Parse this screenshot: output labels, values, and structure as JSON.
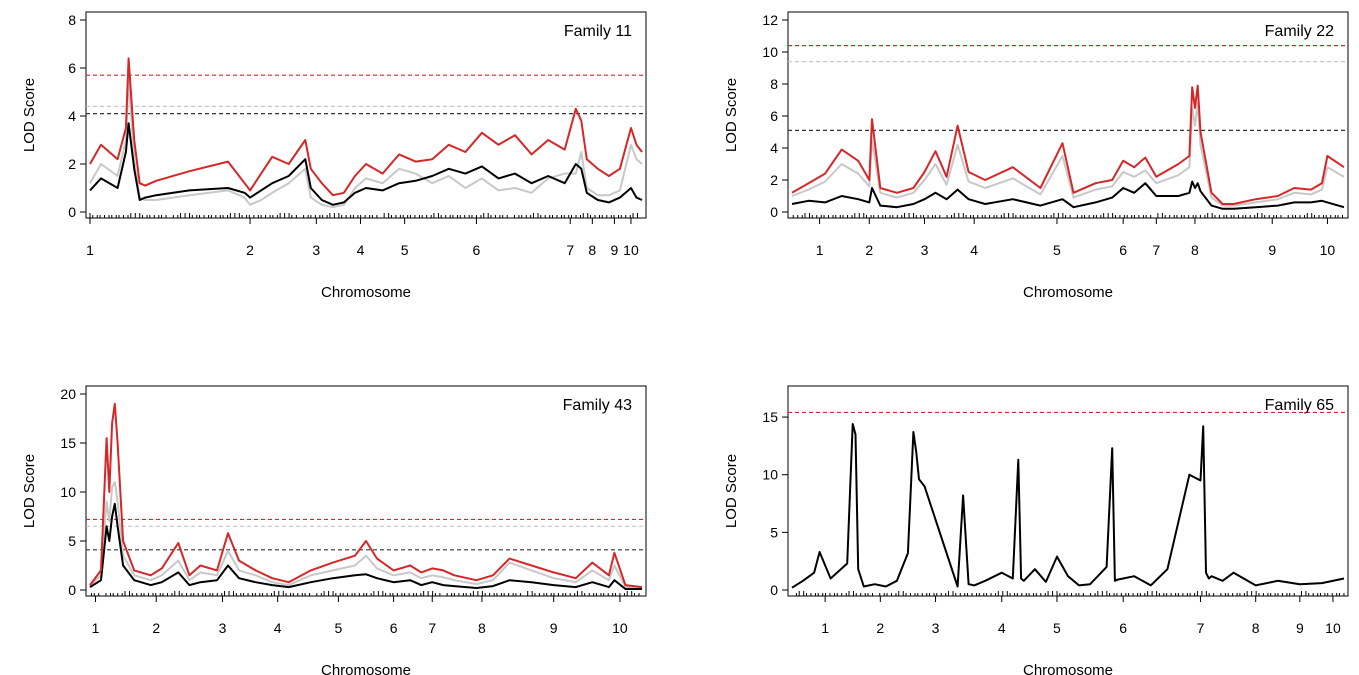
{
  "chart_data": [
    {
      "type": "line",
      "title": "Family 11",
      "xlabel": "Chromosome",
      "ylabel": "LOD Score",
      "ylim": [
        0,
        8
      ],
      "yticks": [
        0,
        2,
        4,
        6,
        8
      ],
      "chromosomes": [
        "1",
        "2",
        "3",
        "4",
        "5",
        "6",
        "7",
        "8",
        "9",
        "10"
      ],
      "chromosome_starts": [
        0.0,
        0.29,
        0.41,
        0.49,
        0.57,
        0.7,
        0.87,
        0.91,
        0.95,
        0.98
      ],
      "thresholds": [
        {
          "color": "#d62728",
          "value": 5.7
        },
        {
          "color": "#c8c8c8",
          "value": 4.4
        },
        {
          "color": "#333333",
          "value": 4.1
        }
      ],
      "series": [
        {
          "color": "#d62728",
          "x": [
            0,
            0.02,
            0.05,
            0.065,
            0.07,
            0.08,
            0.09,
            0.1,
            0.12,
            0.18,
            0.25,
            0.28,
            0.29,
            0.31,
            0.33,
            0.36,
            0.39,
            0.4,
            0.42,
            0.44,
            0.46,
            0.48,
            0.5,
            0.53,
            0.56,
            0.59,
            0.62,
            0.65,
            0.68,
            0.71,
            0.74,
            0.77,
            0.8,
            0.83,
            0.86,
            0.88,
            0.89,
            0.9,
            0.92,
            0.94,
            0.96,
            0.98,
            0.99,
            1.0
          ],
          "y": [
            2.0,
            2.8,
            2.2,
            3.5,
            6.4,
            3.0,
            1.2,
            1.1,
            1.3,
            1.7,
            2.1,
            1.2,
            0.9,
            1.6,
            2.3,
            2.0,
            3.0,
            1.8,
            1.2,
            0.7,
            0.8,
            1.5,
            2.0,
            1.6,
            2.4,
            2.1,
            2.2,
            2.8,
            2.5,
            3.3,
            2.8,
            3.2,
            2.4,
            3.0,
            2.6,
            4.3,
            3.8,
            2.2,
            1.8,
            1.5,
            1.8,
            3.5,
            2.8,
            2.5
          ]
        },
        {
          "color": "#000000",
          "x": [
            0,
            0.02,
            0.05,
            0.065,
            0.07,
            0.08,
            0.09,
            0.1,
            0.12,
            0.18,
            0.25,
            0.28,
            0.29,
            0.31,
            0.33,
            0.36,
            0.39,
            0.4,
            0.42,
            0.44,
            0.46,
            0.48,
            0.5,
            0.53,
            0.56,
            0.59,
            0.62,
            0.65,
            0.68,
            0.71,
            0.74,
            0.77,
            0.8,
            0.83,
            0.86,
            0.88,
            0.89,
            0.9,
            0.92,
            0.94,
            0.96,
            0.98,
            0.99,
            1.0
          ],
          "y": [
            0.9,
            1.4,
            1.0,
            2.5,
            3.7,
            1.8,
            0.5,
            0.6,
            0.7,
            0.9,
            1.0,
            0.8,
            0.6,
            0.9,
            1.2,
            1.5,
            2.2,
            1.0,
            0.5,
            0.3,
            0.4,
            0.8,
            1.0,
            0.9,
            1.2,
            1.3,
            1.5,
            1.8,
            1.6,
            1.9,
            1.4,
            1.6,
            1.2,
            1.5,
            1.2,
            2.0,
            1.8,
            0.8,
            0.5,
            0.4,
            0.6,
            1.0,
            0.6,
            0.5
          ]
        },
        {
          "color": "#c8c8c8",
          "x": [
            0,
            0.02,
            0.05,
            0.065,
            0.07,
            0.08,
            0.09,
            0.1,
            0.12,
            0.18,
            0.25,
            0.28,
            0.29,
            0.31,
            0.33,
            0.36,
            0.39,
            0.4,
            0.42,
            0.44,
            0.46,
            0.48,
            0.5,
            0.53,
            0.56,
            0.59,
            0.62,
            0.65,
            0.68,
            0.71,
            0.74,
            0.77,
            0.8,
            0.83,
            0.86,
            0.88,
            0.89,
            0.9,
            0.92,
            0.94,
            0.96,
            0.98,
            0.99,
            1.0
          ],
          "y": [
            1.2,
            2.0,
            1.5,
            3.0,
            5.5,
            2.2,
            0.6,
            0.5,
            0.5,
            0.7,
            0.9,
            0.6,
            0.3,
            0.5,
            0.8,
            1.2,
            1.8,
            0.6,
            0.3,
            0.2,
            0.3,
            1.0,
            1.4,
            1.2,
            1.8,
            1.6,
            1.2,
            1.5,
            1.0,
            1.4,
            0.9,
            1.0,
            0.8,
            1.4,
            1.6,
            1.6,
            2.5,
            1.0,
            0.7,
            0.7,
            0.9,
            2.8,
            2.2,
            2.0
          ]
        }
      ]
    },
    {
      "type": "line",
      "title": "Family 22",
      "xlabel": "Chromosome",
      "ylabel": "LOD Score",
      "ylim": [
        0,
        12
      ],
      "yticks": [
        0,
        2,
        4,
        6,
        8,
        10,
        12
      ],
      "chromosomes": [
        "1",
        "2",
        "3",
        "4",
        "5",
        "6",
        "7",
        "8",
        "9",
        "10"
      ],
      "chromosome_starts": [
        0.05,
        0.14,
        0.24,
        0.33,
        0.48,
        0.6,
        0.66,
        0.73,
        0.87,
        0.97
      ],
      "thresholds": [
        {
          "color": "#d62728",
          "value": 10.4
        },
        {
          "color": "#c8c8c8",
          "value": 9.4
        },
        {
          "color": "#333333",
          "value": 5.1
        }
      ],
      "series": [
        {
          "color": "#d62728",
          "x": [
            0,
            0.03,
            0.06,
            0.09,
            0.12,
            0.14,
            0.145,
            0.16,
            0.19,
            0.22,
            0.24,
            0.26,
            0.28,
            0.3,
            0.32,
            0.35,
            0.4,
            0.45,
            0.49,
            0.51,
            0.55,
            0.58,
            0.6,
            0.62,
            0.64,
            0.66,
            0.7,
            0.72,
            0.725,
            0.73,
            0.735,
            0.74,
            0.76,
            0.78,
            0.8,
            0.84,
            0.88,
            0.91,
            0.94,
            0.96,
            0.97,
            1.0
          ],
          "y": [
            1.2,
            1.8,
            2.4,
            3.9,
            3.2,
            2.0,
            5.8,
            1.5,
            1.2,
            1.5,
            2.5,
            3.8,
            2.2,
            5.4,
            2.5,
            2.0,
            2.8,
            1.5,
            4.3,
            1.2,
            1.8,
            2.0,
            3.2,
            2.8,
            3.4,
            2.2,
            3.0,
            3.5,
            7.8,
            6.5,
            7.9,
            5.0,
            1.2,
            0.5,
            0.5,
            0.8,
            1.0,
            1.5,
            1.4,
            1.8,
            3.5,
            2.8
          ]
        },
        {
          "color": "#000000",
          "x": [
            0,
            0.03,
            0.06,
            0.09,
            0.12,
            0.14,
            0.145,
            0.16,
            0.19,
            0.22,
            0.24,
            0.26,
            0.28,
            0.3,
            0.32,
            0.35,
            0.4,
            0.45,
            0.49,
            0.51,
            0.55,
            0.58,
            0.6,
            0.62,
            0.64,
            0.66,
            0.7,
            0.72,
            0.725,
            0.73,
            0.735,
            0.74,
            0.76,
            0.78,
            0.8,
            0.84,
            0.88,
            0.91,
            0.94,
            0.96,
            0.97,
            1.0
          ],
          "y": [
            0.5,
            0.7,
            0.6,
            1.0,
            0.8,
            0.6,
            1.5,
            0.4,
            0.3,
            0.5,
            0.8,
            1.2,
            0.8,
            1.4,
            0.8,
            0.5,
            0.8,
            0.4,
            0.8,
            0.3,
            0.6,
            0.9,
            1.5,
            1.2,
            1.8,
            1.0,
            1.0,
            1.2,
            1.9,
            1.5,
            1.8,
            1.3,
            0.4,
            0.2,
            0.2,
            0.3,
            0.4,
            0.6,
            0.6,
            0.7,
            0.6,
            0.3
          ]
        },
        {
          "color": "#c8c8c8",
          "x": [
            0,
            0.03,
            0.06,
            0.09,
            0.12,
            0.14,
            0.145,
            0.16,
            0.19,
            0.22,
            0.24,
            0.26,
            0.28,
            0.3,
            0.32,
            0.35,
            0.4,
            0.45,
            0.49,
            0.51,
            0.55,
            0.58,
            0.6,
            0.62,
            0.64,
            0.66,
            0.7,
            0.72,
            0.725,
            0.73,
            0.735,
            0.74,
            0.76,
            0.78,
            0.8,
            0.84,
            0.88,
            0.91,
            0.94,
            0.96,
            0.97,
            1.0
          ],
          "y": [
            1.0,
            1.4,
            1.9,
            3.0,
            2.4,
            1.6,
            4.5,
            1.2,
            0.9,
            1.2,
            2.0,
            3.0,
            1.7,
            4.2,
            1.9,
            1.5,
            2.1,
            1.1,
            3.5,
            0.9,
            1.4,
            1.6,
            2.5,
            2.2,
            2.6,
            1.8,
            2.3,
            2.8,
            6.5,
            5.4,
            6.8,
            4.2,
            0.9,
            0.4,
            0.4,
            0.6,
            0.8,
            1.2,
            1.1,
            1.4,
            2.8,
            2.2
          ]
        }
      ]
    },
    {
      "type": "line",
      "title": "Family 43",
      "xlabel": "Chromosome",
      "ylabel": "LOD Score",
      "ylim": [
        0,
        20
      ],
      "yticks": [
        0,
        5,
        10,
        15,
        20
      ],
      "chromosomes": [
        "1",
        "2",
        "3",
        "4",
        "5",
        "6",
        "7",
        "8",
        "9",
        "10"
      ],
      "chromosome_starts": [
        0.01,
        0.12,
        0.24,
        0.34,
        0.45,
        0.55,
        0.62,
        0.71,
        0.84,
        0.96
      ],
      "thresholds": [
        {
          "color": "#d62728",
          "value": 7.2
        },
        {
          "color": "#c8c8c8",
          "value": 6.5
        },
        {
          "color": "#333333",
          "value": 4.1
        }
      ],
      "series": [
        {
          "color": "#d62728",
          "x": [
            0,
            0.02,
            0.03,
            0.035,
            0.04,
            0.045,
            0.05,
            0.06,
            0.08,
            0.11,
            0.13,
            0.16,
            0.18,
            0.2,
            0.23,
            0.25,
            0.27,
            0.3,
            0.33,
            0.36,
            0.4,
            0.44,
            0.48,
            0.5,
            0.52,
            0.55,
            0.58,
            0.6,
            0.62,
            0.64,
            0.66,
            0.7,
            0.73,
            0.76,
            0.8,
            0.84,
            0.88,
            0.91,
            0.94,
            0.95,
            0.97,
            1.0
          ],
          "y": [
            0.5,
            2.0,
            15.5,
            10.0,
            17.0,
            19.0,
            15.0,
            5.0,
            2.0,
            1.5,
            2.2,
            4.8,
            1.5,
            2.5,
            2.0,
            5.8,
            3.0,
            2.0,
            1.2,
            0.8,
            2.0,
            2.8,
            3.5,
            5.0,
            3.2,
            2.0,
            2.5,
            1.8,
            2.2,
            2.0,
            1.5,
            1.0,
            1.5,
            3.2,
            2.5,
            1.8,
            1.2,
            2.8,
            1.5,
            3.8,
            0.5,
            0.3
          ]
        },
        {
          "color": "#000000",
          "x": [
            0,
            0.02,
            0.03,
            0.035,
            0.04,
            0.045,
            0.05,
            0.06,
            0.08,
            0.11,
            0.13,
            0.16,
            0.18,
            0.2,
            0.23,
            0.25,
            0.27,
            0.3,
            0.33,
            0.36,
            0.4,
            0.44,
            0.48,
            0.5,
            0.52,
            0.55,
            0.58,
            0.6,
            0.62,
            0.64,
            0.66,
            0.7,
            0.73,
            0.76,
            0.8,
            0.84,
            0.88,
            0.91,
            0.94,
            0.95,
            0.97,
            1.0
          ],
          "y": [
            0.3,
            1.0,
            6.5,
            5.0,
            7.5,
            8.8,
            6.5,
            2.5,
            1.0,
            0.5,
            0.8,
            1.8,
            0.5,
            0.8,
            1.0,
            2.5,
            1.2,
            0.8,
            0.5,
            0.3,
            0.8,
            1.2,
            1.5,
            1.6,
            1.2,
            0.8,
            1.0,
            0.5,
            0.8,
            0.5,
            0.4,
            0.2,
            0.4,
            1.0,
            0.8,
            0.5,
            0.3,
            0.8,
            0.3,
            1.0,
            0.1,
            0.1
          ]
        },
        {
          "color": "#c8c8c8",
          "x": [
            0,
            0.02,
            0.03,
            0.035,
            0.04,
            0.045,
            0.05,
            0.06,
            0.08,
            0.11,
            0.13,
            0.16,
            0.18,
            0.2,
            0.23,
            0.25,
            0.27,
            0.3,
            0.33,
            0.36,
            0.4,
            0.44,
            0.48,
            0.5,
            0.52,
            0.55,
            0.58,
            0.6,
            0.62,
            0.64,
            0.66,
            0.7,
            0.73,
            0.76,
            0.8,
            0.84,
            0.88,
            0.91,
            0.94,
            0.95,
            0.97,
            1.0
          ],
          "y": [
            0.4,
            1.5,
            9.0,
            7.0,
            10.5,
            11.0,
            9.0,
            3.5,
            1.5,
            1.0,
            1.5,
            3.0,
            1.0,
            1.8,
            1.5,
            4.0,
            2.0,
            1.5,
            0.8,
            0.5,
            1.5,
            2.0,
            2.5,
            3.5,
            2.2,
            1.5,
            1.8,
            1.2,
            1.5,
            1.3,
            1.0,
            0.6,
            1.0,
            2.8,
            2.0,
            1.2,
            0.8,
            2.0,
            1.0,
            2.5,
            0.3,
            0.2
          ]
        }
      ]
    },
    {
      "type": "line",
      "title": "Family 65",
      "xlabel": "Chromosome",
      "ylabel": "LOD Score",
      "ylim": [
        0,
        17
      ],
      "yticks": [
        0,
        5,
        10,
        15
      ],
      "chromosomes": [
        "1",
        "2",
        "3",
        "4",
        "5",
        "6",
        "7",
        "8",
        "9",
        "10"
      ],
      "chromosome_starts": [
        0.06,
        0.16,
        0.26,
        0.38,
        0.48,
        0.6,
        0.74,
        0.84,
        0.92,
        0.98
      ],
      "thresholds": [
        {
          "color": "#d62728",
          "value": 15.4
        }
      ],
      "series": [
        {
          "color": "#000000",
          "x": [
            0,
            0.02,
            0.04,
            0.05,
            0.07,
            0.1,
            0.11,
            0.115,
            0.12,
            0.13,
            0.15,
            0.17,
            0.19,
            0.21,
            0.22,
            0.225,
            0.23,
            0.24,
            0.3,
            0.31,
            0.32,
            0.33,
            0.35,
            0.38,
            0.4,
            0.41,
            0.415,
            0.42,
            0.44,
            0.46,
            0.48,
            0.5,
            0.52,
            0.54,
            0.57,
            0.58,
            0.585,
            0.59,
            0.62,
            0.65,
            0.68,
            0.72,
            0.74,
            0.745,
            0.75,
            0.755,
            0.76,
            0.78,
            0.8,
            0.84,
            0.88,
            0.92,
            0.96,
            1.0
          ],
          "y": [
            0.2,
            0.8,
            1.5,
            3.3,
            1.0,
            2.3,
            14.4,
            13.5,
            1.8,
            0.3,
            0.5,
            0.3,
            0.8,
            3.2,
            13.7,
            12.0,
            9.6,
            9.0,
            0.3,
            8.2,
            0.5,
            0.4,
            0.8,
            1.5,
            1.0,
            11.3,
            1.0,
            0.8,
            1.8,
            0.7,
            2.9,
            1.2,
            0.4,
            0.5,
            2.0,
            12.3,
            0.8,
            0.9,
            1.2,
            0.4,
            1.8,
            10.0,
            9.5,
            14.2,
            1.5,
            1.0,
            1.2,
            0.8,
            1.5,
            0.4,
            0.8,
            0.5,
            0.6,
            1.0
          ]
        }
      ]
    }
  ]
}
